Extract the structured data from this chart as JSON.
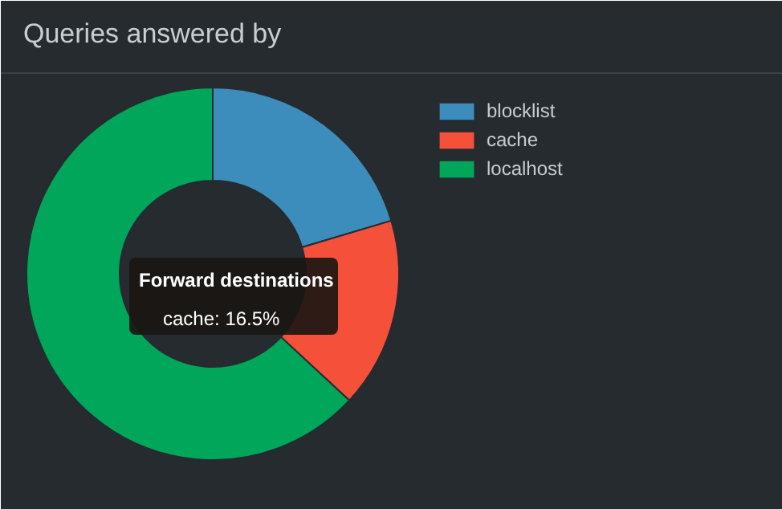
{
  "chart_data": {
    "type": "donut",
    "title": "Queries answered by",
    "categories": [
      "blocklist",
      "cache",
      "localhost"
    ],
    "values": [
      20.4,
      16.5,
      63.1
    ],
    "colors": [
      "#3c8dbc",
      "#f5503a",
      "#00a65a"
    ],
    "legend": "top right",
    "annotations": [
      "Forward destinations",
      "cache: 16.5%"
    ]
  }
}
